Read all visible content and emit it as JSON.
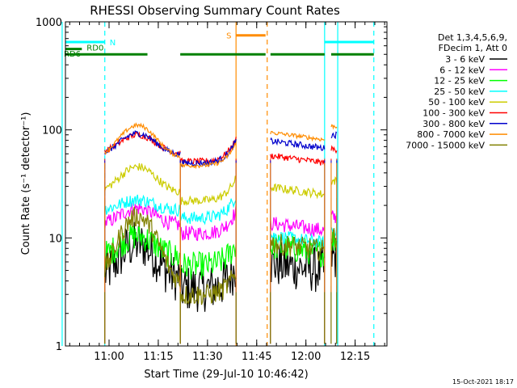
{
  "chart_data": {
    "type": "line",
    "title": "RHESSI Observing Summary Count Rates",
    "xlabel": "Start Time (29-Jul-10 10:46:42)",
    "ylabel": "Count Rate (s⁻¹ detector⁻¹)",
    "yscale": "log",
    "ylim": [
      1,
      1000
    ],
    "xlim_minutes": [
      0,
      98
    ],
    "x_start": "10:46:42",
    "x_tick_labels": [
      "11:00",
      "11:15",
      "11:30",
      "11:45",
      "12:00",
      "12:15"
    ],
    "x_ticks_minutes": [
      13.3,
      28.3,
      43.3,
      58.3,
      73.3,
      88.3
    ],
    "y_tick_labels": [
      "1",
      "10",
      "100",
      "1000"
    ],
    "y_ticks": [
      1,
      10,
      100,
      1000
    ],
    "legend_header": [
      "Det 1,3,4,5,6,9,",
      "FDecim 1, Att 0"
    ],
    "footer": "15-Oct-2021 18:17",
    "segments_minutes": [
      [
        12,
        35
      ],
      [
        35,
        52
      ],
      [
        62.5,
        79
      ],
      [
        81,
        82.7
      ]
    ],
    "series": [
      {
        "name": "3 - 6 keV",
        "color": "#000000",
        "base": 4,
        "noise": 0.22,
        "hump": 2.2,
        "p2": 5.5
      },
      {
        "name": "6 - 12 keV",
        "color": "#ff00ff",
        "base": 13,
        "noise": 0.07,
        "hump": 1.45,
        "p2": 13
      },
      {
        "name": "12 - 25 keV",
        "color": "#00ff00",
        "base": 6.5,
        "noise": 0.13,
        "hump": 1.6,
        "p2": 8
      },
      {
        "name": "25 - 50 keV",
        "color": "#00ffff",
        "base": 18,
        "noise": 0.06,
        "hump": 1.25,
        "p2": 10
      },
      {
        "name": "50 - 100 keV",
        "color": "#cccc00",
        "base": 26,
        "noise": 0.04,
        "hump": 1.75,
        "p2": 28
      },
      {
        "name": "100 - 300 keV",
        "color": "#ff0000",
        "base": 60,
        "noise": 0.03,
        "hump": 1.5,
        "p2": 55
      },
      {
        "name": "300 - 800 keV",
        "color": "#0000cc",
        "base": 58,
        "noise": 0.03,
        "hump": 1.6,
        "p2": 75
      },
      {
        "name": "800 - 7000 keV",
        "color": "#ff8c00",
        "base": 55,
        "noise": 0.02,
        "hump": 2.0,
        "p2": 90
      },
      {
        "name": "7000 - 15000 keV",
        "color": "#808000",
        "base": 3.5,
        "noise": 0.1,
        "hump": 4.5,
        "p2": 8.5
      }
    ],
    "annotations": {
      "N": {
        "label": "N",
        "color": "#00ffff",
        "bars": [
          [
            -1,
            12
          ]
        ],
        "level": 650
      },
      "RD0": {
        "label": "RD0",
        "color": "#008000",
        "bars": [
          [
            -1,
            5
          ]
        ],
        "level": 560
      },
      "RD6": {
        "label": "RD6",
        "color": "#008000",
        "bars": [
          [
            -1,
            25
          ],
          [
            35,
            61
          ],
          [
            62.5,
            79
          ],
          [
            81,
            94
          ]
        ],
        "level": 500
      },
      "S": {
        "label": "S",
        "color": "#ff8c00",
        "bars": [
          [
            52,
            61
          ]
        ],
        "level": 750
      },
      "N2": {
        "label": "",
        "color": "#00ffff",
        "bars": [
          [
            79,
            94
          ]
        ],
        "level": 650
      }
    },
    "vlines": [
      {
        "x": -1,
        "color": "#00ffff",
        "dash": false
      },
      {
        "x": 12,
        "color": "#00ffff",
        "dash": true
      },
      {
        "x": 52,
        "color": "#ff8c00",
        "dash": false
      },
      {
        "x": 61.5,
        "color": "#ff8c00",
        "dash": true
      },
      {
        "x": 79,
        "color": "#00ffff",
        "dash": false
      },
      {
        "x": 83,
        "color": "#00ffff",
        "dash": false
      },
      {
        "x": 94,
        "color": "#00ffff",
        "dash": true
      }
    ]
  }
}
